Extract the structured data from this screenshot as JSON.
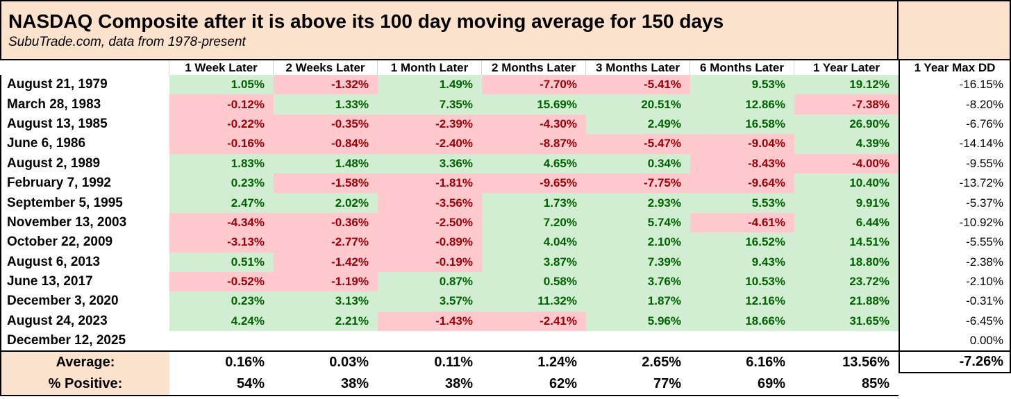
{
  "chart_data": {
    "type": "table",
    "title": "NASDAQ Composite after it is above its 100 day moving average for 150 days",
    "subtitle": "SubuTrade.com, data from 1978-present",
    "columns": [
      "1 Week Later",
      "2 Weeks Later",
      "1 Month Later",
      "2 Months Later",
      "3 Months Later",
      "6 Months Later",
      "1 Year Later"
    ],
    "max_dd_column": "1 Year Max DD",
    "rows": [
      {
        "date": "August 21, 1979",
        "values": [
          "1.05%",
          "-1.32%",
          "1.49%",
          "-7.70%",
          "-5.41%",
          "9.53%",
          "19.12%"
        ],
        "max_dd": "-16.15%"
      },
      {
        "date": "March 28, 1983",
        "values": [
          "-0.12%",
          "1.33%",
          "7.35%",
          "15.69%",
          "20.51%",
          "12.86%",
          "-7.38%"
        ],
        "max_dd": "-8.20%"
      },
      {
        "date": "August 13, 1985",
        "values": [
          "-0.22%",
          "-0.35%",
          "-2.39%",
          "-4.30%",
          "2.49%",
          "16.58%",
          "26.90%"
        ],
        "max_dd": "-6.76%"
      },
      {
        "date": "June 6, 1986",
        "values": [
          "-0.16%",
          "-0.84%",
          "-2.40%",
          "-8.87%",
          "-5.47%",
          "-9.04%",
          "4.39%"
        ],
        "max_dd": "-14.14%"
      },
      {
        "date": "August 2, 1989",
        "values": [
          "1.83%",
          "1.48%",
          "3.36%",
          "4.65%",
          "0.34%",
          "-8.43%",
          "-4.00%"
        ],
        "max_dd": "-9.55%"
      },
      {
        "date": "February 7, 1992",
        "values": [
          "0.23%",
          "-1.58%",
          "-1.81%",
          "-9.65%",
          "-7.75%",
          "-9.64%",
          "10.40%"
        ],
        "max_dd": "-13.72%"
      },
      {
        "date": "September 5, 1995",
        "values": [
          "2.47%",
          "2.02%",
          "-3.56%",
          "1.73%",
          "2.93%",
          "5.53%",
          "9.91%"
        ],
        "max_dd": "-5.37%"
      },
      {
        "date": "November 13, 2003",
        "values": [
          "-4.34%",
          "-0.36%",
          "-2.50%",
          "7.20%",
          "5.74%",
          "-4.61%",
          "6.44%"
        ],
        "max_dd": "-10.92%"
      },
      {
        "date": "October 22, 2009",
        "values": [
          "-3.13%",
          "-2.77%",
          "-0.89%",
          "4.04%",
          "2.10%",
          "16.52%",
          "14.51%"
        ],
        "max_dd": "-5.55%"
      },
      {
        "date": "August 6, 2013",
        "values": [
          "0.51%",
          "-1.42%",
          "-0.19%",
          "3.87%",
          "7.39%",
          "9.43%",
          "18.80%"
        ],
        "max_dd": "-2.38%"
      },
      {
        "date": "June 13, 2017",
        "values": [
          "-0.52%",
          "-1.19%",
          "0.87%",
          "0.58%",
          "3.76%",
          "10.53%",
          "23.72%"
        ],
        "max_dd": "-2.10%"
      },
      {
        "date": "December 3, 2020",
        "values": [
          "0.23%",
          "3.13%",
          "3.57%",
          "11.32%",
          "1.87%",
          "12.16%",
          "21.88%"
        ],
        "max_dd": "-0.31%"
      },
      {
        "date": "August 24, 2023",
        "values": [
          "4.24%",
          "2.21%",
          "-1.43%",
          "-2.41%",
          "5.96%",
          "18.66%",
          "31.65%"
        ],
        "max_dd": "-6.45%"
      },
      {
        "date": "December 12, 2025",
        "values": [
          "",
          "",
          "",
          "",
          "",
          "",
          ""
        ],
        "max_dd": "0.00%"
      }
    ],
    "summary": {
      "average_label": "Average:",
      "average": [
        "0.16%",
        "0.03%",
        "0.11%",
        "1.24%",
        "2.65%",
        "6.16%",
        "13.56%"
      ],
      "average_max_dd": "-7.26%",
      "positive_label": "% Positive:",
      "percent_positive": [
        "54%",
        "38%",
        "38%",
        "62%",
        "77%",
        "69%",
        "85%"
      ]
    }
  },
  "colors": {
    "title_bg": "#FBE2CC",
    "positive_bg": "#D2EED2",
    "positive_text": "#006100",
    "negative_bg": "#FFC9CD",
    "negative_text": "#9C0006",
    "header_separator": "#D6D6D6",
    "border": "#000000"
  }
}
